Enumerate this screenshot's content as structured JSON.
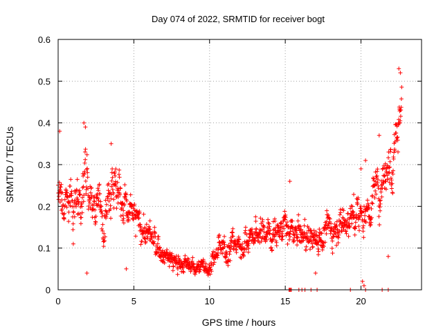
{
  "chart_data": {
    "type": "scatter",
    "title": "Day 074 of 2022, SRMTID for receiver bogt",
    "xlabel": "GPS time / hours",
    "ylabel": "SRMTID / TECUs",
    "xlim": [
      0,
      24
    ],
    "ylim": [
      0,
      0.6
    ],
    "xticks": [
      0,
      5,
      10,
      15,
      20
    ],
    "yticks": [
      0,
      0.1,
      0.2,
      0.3,
      0.4,
      0.5,
      0.6
    ],
    "xtick_labels": [
      "0",
      "5",
      "10",
      "15",
      "20"
    ],
    "ytick_labels": [
      "0",
      "0.1",
      "0.2",
      "0.3",
      "0.4",
      "0.5",
      "0.6"
    ],
    "grid": true,
    "marker": "+",
    "color": "#ff0000",
    "series": [
      {
        "name": "SRMTID",
        "trend": {
          "x": [
            0,
            0.5,
            1,
            1.5,
            1.8,
            2.2,
            3,
            3.5,
            4,
            4.5,
            5,
            5.5,
            6,
            6.5,
            7,
            7.5,
            8,
            8.5,
            9,
            9.5,
            10,
            10.5,
            11,
            11.5,
            12,
            12.5,
            13,
            13.5,
            14,
            14.5,
            15,
            15.5,
            16,
            16.5,
            17,
            17.5,
            18,
            18.5,
            19,
            19.5,
            20,
            20.5,
            21,
            21.5,
            22,
            22.3,
            22.7
          ],
          "y": [
            0.25,
            0.2,
            0.22,
            0.2,
            0.32,
            0.2,
            0.2,
            0.27,
            0.23,
            0.19,
            0.17,
            0.15,
            0.13,
            0.1,
            0.08,
            0.07,
            0.06,
            0.06,
            0.06,
            0.05,
            0.06,
            0.09,
            0.1,
            0.11,
            0.11,
            0.12,
            0.13,
            0.14,
            0.14,
            0.15,
            0.14,
            0.13,
            0.13,
            0.13,
            0.12,
            0.14,
            0.15,
            0.16,
            0.17,
            0.17,
            0.18,
            0.2,
            0.24,
            0.28,
            0.32,
            0.4,
            0.44
          ]
        },
        "scatter_band": [
          0.06,
          0.05,
          0.06,
          0.05,
          0.09,
          0.06,
          0.06,
          0.07,
          0.06,
          0.05,
          0.05,
          0.05,
          0.04,
          0.035,
          0.03,
          0.025,
          0.02,
          0.02,
          0.02,
          0.02,
          0.025,
          0.03,
          0.035,
          0.035,
          0.035,
          0.035,
          0.04,
          0.04,
          0.04,
          0.04,
          0.04,
          0.04,
          0.04,
          0.04,
          0.04,
          0.045,
          0.045,
          0.045,
          0.05,
          0.05,
          0.05,
          0.05,
          0.06,
          0.06,
          0.07,
          0.08,
          0.08
        ],
        "outliers_high": [
          {
            "x": 0.1,
            "y": 0.38
          },
          {
            "x": 1.7,
            "y": 0.4
          },
          {
            "x": 1.8,
            "y": 0.39
          },
          {
            "x": 3.5,
            "y": 0.35
          },
          {
            "x": 15.3,
            "y": 0.26
          },
          {
            "x": 20.0,
            "y": 0.29
          },
          {
            "x": 20.3,
            "y": 0.31
          },
          {
            "x": 21.2,
            "y": 0.37
          },
          {
            "x": 22.5,
            "y": 0.53
          },
          {
            "x": 22.6,
            "y": 0.52
          }
        ],
        "outliers_low": [
          {
            "x": 1.0,
            "y": 0.11
          },
          {
            "x": 1.9,
            "y": 0.04
          },
          {
            "x": 4.5,
            "y": 0.05
          },
          {
            "x": 17.0,
            "y": 0.04
          },
          {
            "x": 20.1,
            "y": 0.02
          },
          {
            "x": 20.2,
            "y": 0.01
          },
          {
            "x": 21.8,
            "y": 0.08
          }
        ],
        "zeros_x": [
          15.25,
          15.3,
          15.35,
          15.4,
          15.9,
          16.1,
          16.3,
          16.7,
          17.1,
          19.3,
          20.3,
          21.4,
          21.8
        ]
      }
    ]
  }
}
